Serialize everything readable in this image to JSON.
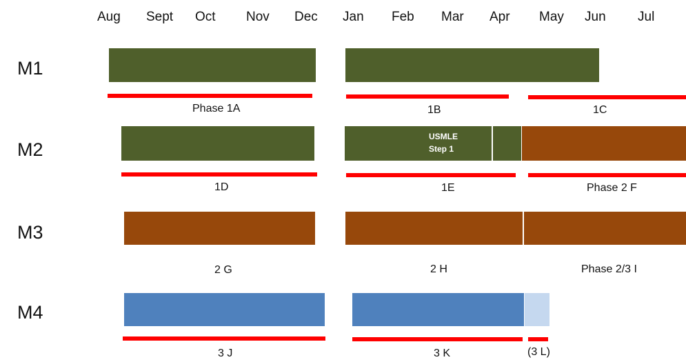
{
  "months": [
    "Aug",
    "Sept",
    "Oct",
    "Nov",
    "Dec",
    "Jan",
    "Feb",
    "Mar",
    "Apr",
    "May",
    "Jun",
    "Jul"
  ],
  "rows": {
    "m1": "M1",
    "m2": "M2",
    "m3": "M3",
    "m4": "M4"
  },
  "phases": {
    "p1a": "Phase 1A",
    "p1b": "1B",
    "p1c": "1C",
    "p1d": "1D",
    "p1e": "1E",
    "p2f": "Phase 2 F",
    "p2g": "2 G",
    "p2h": "2 H",
    "p23i": "Phase 2/3 I",
    "p3j": "3 J",
    "p3k": "3 K",
    "p3l": "(3 L)"
  },
  "usmle": {
    "line1": "USMLE",
    "line2": "Step 1"
  },
  "colors": {
    "green": "#4f5f2b",
    "brown": "#97480b",
    "blue": "#4f81bd",
    "light_blue": "#c5d8ef",
    "red": "#ff0000"
  }
}
